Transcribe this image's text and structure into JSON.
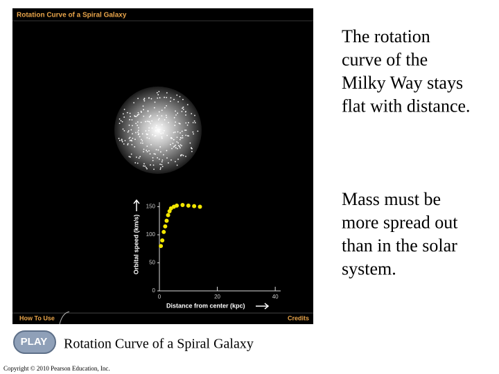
{
  "panel": {
    "title": "Rotation Curve of a Spiral Galaxy",
    "how_to_use": "How To Use",
    "credits": "Credits"
  },
  "chart": {
    "type": "scatter",
    "y_label": "Orbital speed (km/s)",
    "x_label": "Distance from center (kpc)",
    "color": "#f2e600",
    "x": [
      0.5,
      1,
      1.5,
      2,
      2.5,
      3,
      3.5,
      4,
      5,
      6,
      8,
      10,
      12,
      14
    ],
    "values": [
      80,
      90,
      105,
      115,
      125,
      135,
      142,
      147,
      150,
      152,
      153,
      152,
      151,
      150
    ],
    "xlim": [
      0,
      42
    ],
    "ylim": [
      0,
      158
    ],
    "xticks": [
      0,
      20,
      40
    ],
    "yticks": [
      0,
      50,
      100,
      150
    ]
  },
  "paragraphs": [
    {
      "lines": [
        "The rotation",
        "curve of the",
        "Milky Way stays",
        "flat with distance."
      ]
    },
    {
      "lines": [
        "Mass must be",
        "more spread out",
        "than in the solar",
        "system."
      ]
    }
  ],
  "play": "PLAY",
  "caption": "Rotation Curve of a Spiral Galaxy",
  "copyright": "Copyright © 2010 Pearson Education, Inc."
}
